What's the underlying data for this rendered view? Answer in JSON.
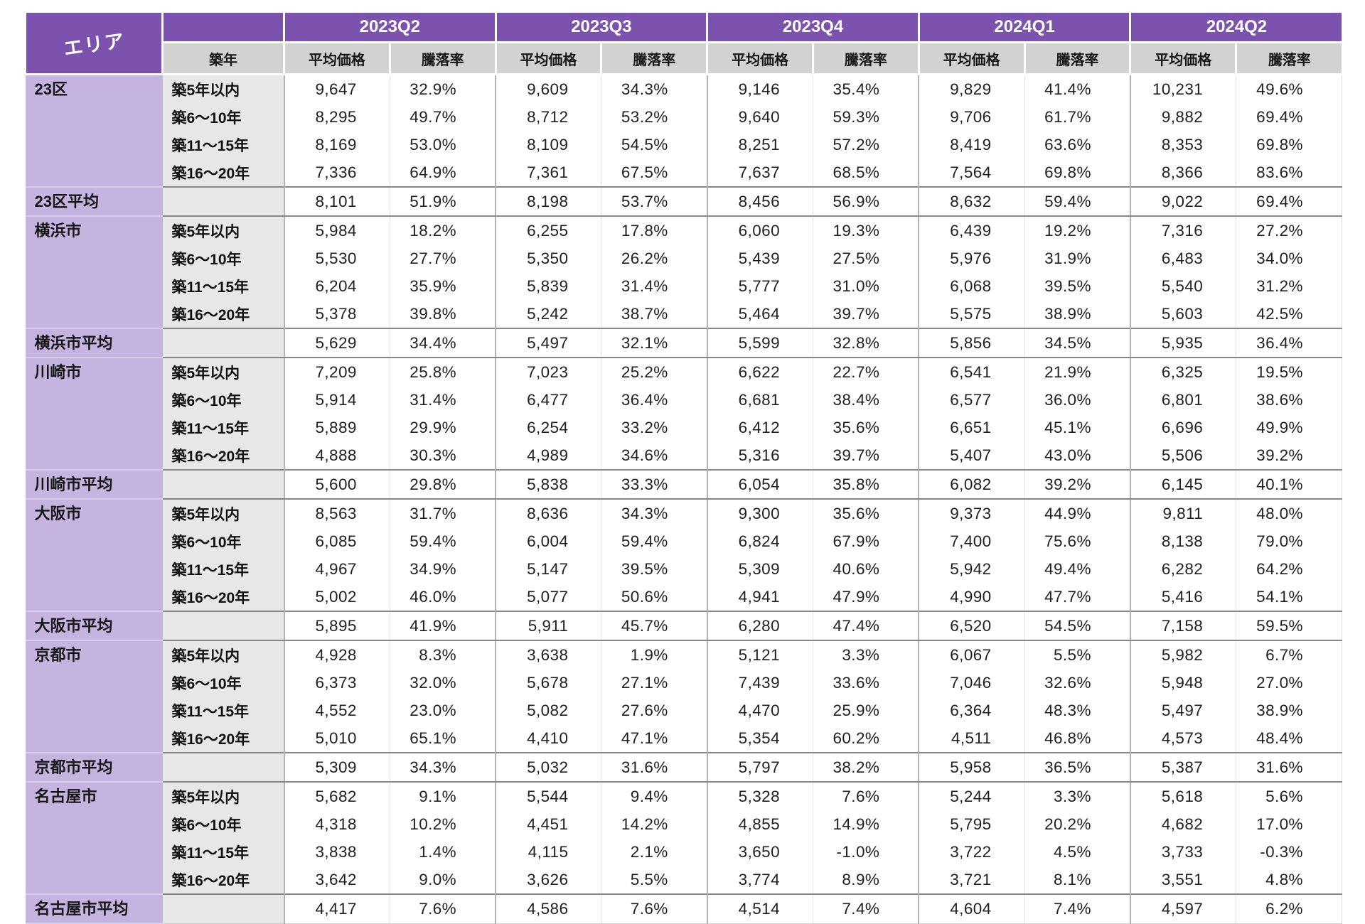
{
  "colors": {
    "header_purple": "#7B52AE",
    "area_column_purple": "#C4B4DF",
    "subheader_gray": "#D2D2D2",
    "year_column_gray": "#E7E7E7",
    "group_divider_gray": "#878787"
  },
  "chart_data": {
    "type": "table",
    "area_header": "エリア",
    "year_header": "築年",
    "price_header": "平均価格",
    "change_header": "騰落率",
    "quarters": [
      "2023Q2",
      "2023Q3",
      "2023Q4",
      "2024Q1",
      "2024Q2"
    ],
    "groups": [
      {
        "area": "23区",
        "avg_label": "23区平均",
        "rows": [
          {
            "age": "築5年以内",
            "cells": [
              "9,647",
              "32.9%",
              "9,609",
              "34.3%",
              "9,146",
              "35.4%",
              "9,829",
              "41.4%",
              "10,231",
              "49.6%"
            ]
          },
          {
            "age": "築6〜10年",
            "cells": [
              "8,295",
              "49.7%",
              "8,712",
              "53.2%",
              "9,640",
              "59.3%",
              "9,706",
              "61.7%",
              "9,882",
              "69.4%"
            ]
          },
          {
            "age": "築11〜15年",
            "cells": [
              "8,169",
              "53.0%",
              "8,109",
              "54.5%",
              "8,251",
              "57.2%",
              "8,419",
              "63.6%",
              "8,353",
              "69.8%"
            ]
          },
          {
            "age": "築16〜20年",
            "cells": [
              "7,336",
              "64.9%",
              "7,361",
              "67.5%",
              "7,637",
              "68.5%",
              "7,564",
              "69.8%",
              "8,366",
              "83.6%"
            ]
          }
        ],
        "avg_cells": [
          "8,101",
          "51.9%",
          "8,198",
          "53.7%",
          "8,456",
          "56.9%",
          "8,632",
          "59.4%",
          "9,022",
          "69.4%"
        ]
      },
      {
        "area": "横浜市",
        "avg_label": "横浜市平均",
        "rows": [
          {
            "age": "築5年以内",
            "cells": [
              "5,984",
              "18.2%",
              "6,255",
              "17.8%",
              "6,060",
              "19.3%",
              "6,439",
              "19.2%",
              "7,316",
              "27.2%"
            ]
          },
          {
            "age": "築6〜10年",
            "cells": [
              "5,530",
              "27.7%",
              "5,350",
              "26.2%",
              "5,439",
              "27.5%",
              "5,976",
              "31.9%",
              "6,483",
              "34.0%"
            ]
          },
          {
            "age": "築11〜15年",
            "cells": [
              "6,204",
              "35.9%",
              "5,839",
              "31.4%",
              "5,777",
              "31.0%",
              "6,068",
              "39.5%",
              "5,540",
              "31.2%"
            ]
          },
          {
            "age": "築16〜20年",
            "cells": [
              "5,378",
              "39.8%",
              "5,242",
              "38.7%",
              "5,464",
              "39.7%",
              "5,575",
              "38.9%",
              "5,603",
              "42.5%"
            ]
          }
        ],
        "avg_cells": [
          "5,629",
          "34.4%",
          "5,497",
          "32.1%",
          "5,599",
          "32.8%",
          "5,856",
          "34.5%",
          "5,935",
          "36.4%"
        ]
      },
      {
        "area": "川崎市",
        "avg_label": "川崎市平均",
        "rows": [
          {
            "age": "築5年以内",
            "cells": [
              "7,209",
              "25.8%",
              "7,023",
              "25.2%",
              "6,622",
              "22.7%",
              "6,541",
              "21.9%",
              "6,325",
              "19.5%"
            ]
          },
          {
            "age": "築6〜10年",
            "cells": [
              "5,914",
              "31.4%",
              "6,477",
              "36.4%",
              "6,681",
              "38.4%",
              "6,577",
              "36.0%",
              "6,801",
              "38.6%"
            ]
          },
          {
            "age": "築11〜15年",
            "cells": [
              "5,889",
              "29.9%",
              "6,254",
              "33.2%",
              "6,412",
              "35.6%",
              "6,651",
              "45.1%",
              "6,696",
              "49.9%"
            ]
          },
          {
            "age": "築16〜20年",
            "cells": [
              "4,888",
              "30.3%",
              "4,989",
              "34.6%",
              "5,316",
              "39.7%",
              "5,407",
              "43.0%",
              "5,506",
              "39.2%"
            ]
          }
        ],
        "avg_cells": [
          "5,600",
          "29.8%",
          "5,838",
          "33.3%",
          "6,054",
          "35.8%",
          "6,082",
          "39.2%",
          "6,145",
          "40.1%"
        ]
      },
      {
        "area": "大阪市",
        "avg_label": "大阪市平均",
        "rows": [
          {
            "age": "築5年以内",
            "cells": [
              "8,563",
              "31.7%",
              "8,636",
              "34.3%",
              "9,300",
              "35.6%",
              "9,373",
              "44.9%",
              "9,811",
              "48.0%"
            ]
          },
          {
            "age": "築6〜10年",
            "cells": [
              "6,085",
              "59.4%",
              "6,004",
              "59.4%",
              "6,824",
              "67.9%",
              "7,400",
              "75.6%",
              "8,138",
              "79.0%"
            ]
          },
          {
            "age": "築11〜15年",
            "cells": [
              "4,967",
              "34.9%",
              "5,147",
              "39.5%",
              "5,309",
              "40.6%",
              "5,942",
              "49.4%",
              "6,282",
              "64.2%"
            ]
          },
          {
            "age": "築16〜20年",
            "cells": [
              "5,002",
              "46.0%",
              "5,077",
              "50.6%",
              "4,941",
              "47.9%",
              "4,990",
              "47.7%",
              "5,416",
              "54.1%"
            ]
          }
        ],
        "avg_cells": [
          "5,895",
          "41.9%",
          "5,911",
          "45.7%",
          "6,280",
          "47.4%",
          "6,520",
          "54.5%",
          "7,158",
          "59.5%"
        ]
      },
      {
        "area": "京都市",
        "avg_label": "京都市平均",
        "rows": [
          {
            "age": "築5年以内",
            "cells": [
              "4,928",
              "8.3%",
              "3,638",
              "1.9%",
              "5,121",
              "3.3%",
              "6,067",
              "5.5%",
              "5,982",
              "6.7%"
            ]
          },
          {
            "age": "築6〜10年",
            "cells": [
              "6,373",
              "32.0%",
              "5,678",
              "27.1%",
              "7,439",
              "33.6%",
              "7,046",
              "32.6%",
              "5,948",
              "27.0%"
            ]
          },
          {
            "age": "築11〜15年",
            "cells": [
              "4,552",
              "23.0%",
              "5,082",
              "27.6%",
              "4,470",
              "25.9%",
              "6,364",
              "48.3%",
              "5,497",
              "38.9%"
            ]
          },
          {
            "age": "築16〜20年",
            "cells": [
              "5,010",
              "65.1%",
              "4,410",
              "47.1%",
              "5,354",
              "60.2%",
              "4,511",
              "46.8%",
              "4,573",
              "48.4%"
            ]
          }
        ],
        "avg_cells": [
          "5,309",
          "34.3%",
          "5,032",
          "31.6%",
          "5,797",
          "38.2%",
          "5,958",
          "36.5%",
          "5,387",
          "31.6%"
        ]
      },
      {
        "area": "名古屋市",
        "avg_label": "名古屋市平均",
        "rows": [
          {
            "age": "築5年以内",
            "cells": [
              "5,682",
              "9.1%",
              "5,544",
              "9.4%",
              "5,328",
              "7.6%",
              "5,244",
              "3.3%",
              "5,618",
              "5.6%"
            ]
          },
          {
            "age": "築6〜10年",
            "cells": [
              "4,318",
              "10.2%",
              "4,451",
              "14.2%",
              "4,855",
              "14.9%",
              "5,795",
              "20.2%",
              "4,682",
              "17.0%"
            ]
          },
          {
            "age": "築11〜15年",
            "cells": [
              "3,838",
              "1.4%",
              "4,115",
              "2.1%",
              "3,650",
              "-1.0%",
              "3,722",
              "4.5%",
              "3,733",
              "-0.3%"
            ]
          },
          {
            "age": "築16〜20年",
            "cells": [
              "3,642",
              "9.0%",
              "3,626",
              "5.5%",
              "3,774",
              "8.9%",
              "3,721",
              "8.1%",
              "3,551",
              "4.8%"
            ]
          }
        ],
        "avg_cells": [
          "4,417",
          "7.6%",
          "4,586",
          "7.6%",
          "4,514",
          "7.4%",
          "4,604",
          "7.4%",
          "4,597",
          "6.2%"
        ]
      }
    ]
  }
}
